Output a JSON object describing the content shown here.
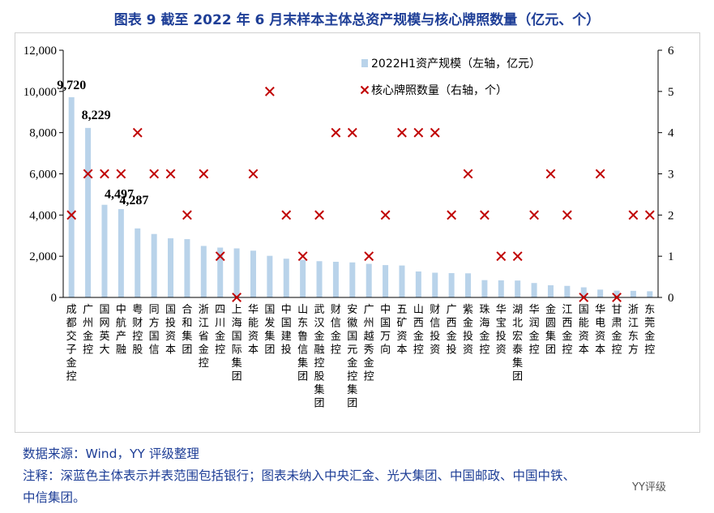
{
  "title": "图表 9  截至 2022 年 6 月末样本主体总资产规模与核心牌照数量（亿元、个）",
  "colors": {
    "bar": "#b9d3ea",
    "marker": "#c00000",
    "title": "#1f3f97",
    "axis": "#000000"
  },
  "chart_data": {
    "type": "bar+scatter",
    "title": "截至 2022 年 6 月末样本主体总资产规模与核心牌照数量（亿元、个）",
    "categories": [
      "成都交子金控",
      "广州金控",
      "国网英大",
      "中航产融",
      "粤财控股",
      "同方国信",
      "国投资本",
      "合和集团",
      "浙江省金控",
      "四川金控",
      "上海国际集团",
      "华能资本",
      "国发集团",
      "中国建投",
      "山东鲁信集团",
      "武汉金融控股集团",
      "财信金控",
      "安徽国元金控集团",
      "广州越秀金控",
      "中国万向",
      "五矿资本",
      "山西金控",
      "财信投资",
      "广西金投",
      "紫金投资",
      "珠海金控",
      "华宝投资",
      "湖北宏泰集团",
      "华润金控",
      "金圆集团",
      "江西金控",
      "国能资本",
      "华电资本",
      "甘肃金控",
      "浙江东方",
      "东莞金控"
    ],
    "series": [
      {
        "name": "2022H1资产规模（左轴，亿元）",
        "type": "bar",
        "axis": "left",
        "values": [
          9720,
          8229,
          4497,
          4287,
          3350,
          3080,
          2870,
          2830,
          2500,
          2420,
          2380,
          2270,
          2020,
          1880,
          1820,
          1760,
          1730,
          1700,
          1630,
          1570,
          1550,
          1260,
          1200,
          1180,
          1170,
          840,
          830,
          820,
          700,
          590,
          560,
          490,
          380,
          330,
          320,
          300
        ]
      },
      {
        "name": "核心牌照数量（右轴，个）",
        "type": "scatter",
        "axis": "right",
        "values": [
          2,
          3,
          3,
          3,
          4,
          3,
          3,
          2,
          3,
          1,
          0,
          3,
          5,
          2,
          1,
          2,
          4,
          4,
          1,
          2,
          4,
          4,
          4,
          2,
          3,
          2,
          1,
          1,
          2,
          3,
          2,
          0,
          3,
          0,
          2,
          2
        ]
      }
    ],
    "data_labels": [
      {
        "index": 0,
        "text": "9,720"
      },
      {
        "index": 1,
        "text": "8,229"
      },
      {
        "index": 2,
        "text": "4,497"
      },
      {
        "index": 3,
        "text": "4,287"
      }
    ],
    "y_left": {
      "min": 0,
      "max": 12000,
      "ticks": [
        0,
        2000,
        4000,
        6000,
        8000,
        10000,
        12000
      ],
      "tick_labels": [
        "0",
        "2,000",
        "4,000",
        "6,000",
        "8,000",
        "10,000",
        "12,000"
      ]
    },
    "y_right": {
      "min": 0,
      "max": 6,
      "ticks": [
        0,
        1,
        2,
        3,
        4,
        5,
        6
      ],
      "tick_labels": [
        "0",
        "1",
        "2",
        "3",
        "4",
        "5",
        "6"
      ]
    },
    "legend": {
      "position": "top-right",
      "bar_label": "2022H1资产规模（左轴，亿元）",
      "marker_label": "核心牌照数量（右轴，个）"
    }
  },
  "notes": {
    "source": "数据来源：Wind，YY 评级整理",
    "remark_line1": "注释：深蓝色主体表示并表范围包括银行；图表未纳入中央汇金、光大集团、中国邮政、中国中铁、",
    "remark_line2": "中信集团。"
  },
  "watermark": "YY评级"
}
